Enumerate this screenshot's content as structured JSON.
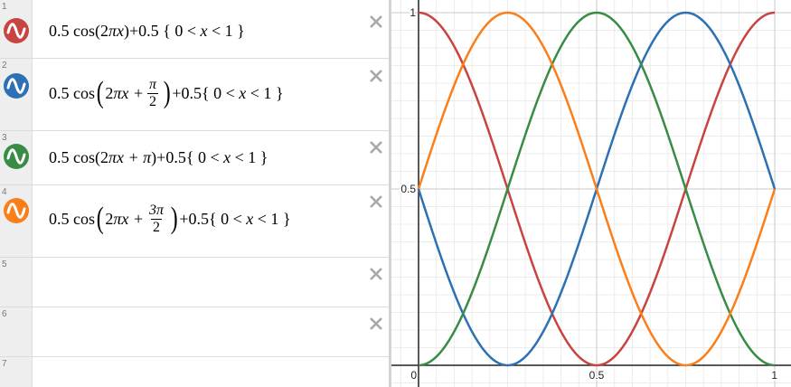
{
  "expressions": [
    {
      "index": "1",
      "color": "#c74440",
      "coef": "0.5",
      "fn": "cos",
      "arg_a": "2",
      "arg_b": "πx",
      "close": ")+0.5",
      "domain_open": "{",
      "domain_l": "0 <",
      "domain_var": "x",
      "domain_r": "< 1",
      "domain_close": "}"
    },
    {
      "index": "2",
      "color": "#2d70b3",
      "coef": "0.5",
      "fn": "cos",
      "arg_a": "2",
      "arg_b": "πx +",
      "frac_num": "π",
      "frac_den": "2",
      "close": "+0.5",
      "domain_open": "{",
      "domain_l": "0 <",
      "domain_var": "x",
      "domain_r": "< 1",
      "domain_close": "}"
    },
    {
      "index": "3",
      "color": "#388c46",
      "coef": "0.5",
      "fn": "cos",
      "arg_a": "2",
      "arg_b": "πx + π",
      "close": ")+0.5",
      "domain_open": "{",
      "domain_l": "0 <",
      "domain_var": "x",
      "domain_r": "< 1",
      "domain_close": "}"
    },
    {
      "index": "4",
      "color": "#fa7e19",
      "coef": "0.5",
      "fn": "cos",
      "arg_a": "2",
      "arg_b": "πx +",
      "frac_num": "3π",
      "frac_den": "2",
      "close": "+0.5",
      "domain_open": "{",
      "domain_l": "0 <",
      "domain_var": "x",
      "domain_r": "< 1",
      "domain_close": "}"
    }
  ],
  "empty_rows": [
    "5",
    "6",
    "7"
  ],
  "graph": {
    "x_ticks": [
      "0",
      "0.5",
      "1"
    ],
    "y_ticks": [
      "1",
      "0.5"
    ]
  },
  "chart_data": {
    "type": "line",
    "title": "",
    "xlabel": "",
    "ylabel": "",
    "xlim": [
      0,
      1
    ],
    "ylim": [
      0,
      1
    ],
    "grid": true,
    "series": [
      {
        "color": "#c74440",
        "phase": 0,
        "x": [
          0,
          0.25,
          0.5,
          0.75,
          1
        ],
        "values": [
          1,
          0.5,
          0,
          0.5,
          1
        ]
      },
      {
        "color": "#2d70b3",
        "phase": 0.25,
        "x": [
          0,
          0.25,
          0.5,
          0.75,
          1
        ],
        "values": [
          0.5,
          0,
          0.5,
          1,
          0.5
        ]
      },
      {
        "color": "#388c46",
        "phase": 0.5,
        "x": [
          0,
          0.25,
          0.5,
          0.75,
          1
        ],
        "values": [
          0,
          0.5,
          1,
          0.5,
          0
        ]
      },
      {
        "color": "#fa7e19",
        "phase": 0.75,
        "x": [
          0,
          0.25,
          0.5,
          0.75,
          1
        ],
        "values": [
          0.5,
          1,
          0.5,
          0,
          0.5
        ]
      }
    ]
  }
}
